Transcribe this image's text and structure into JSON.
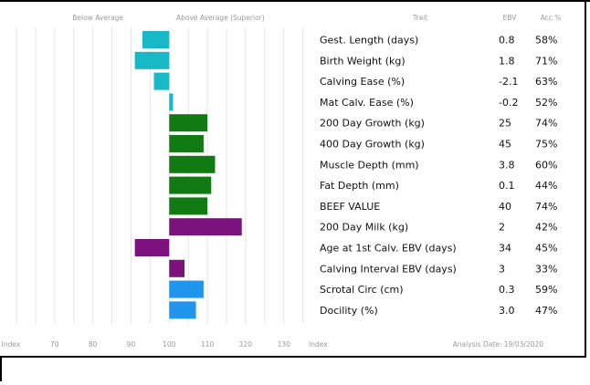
{
  "chart_data": {
    "type": "bar",
    "orientation": "horizontal",
    "header_left": "Below Average",
    "header_right": "Above Average (Superior)",
    "col_trait": "Trait",
    "col_ebv": "EBV",
    "col_acc": "Acc %",
    "x_ticks": [
      {
        "value": 60,
        "label": "Index"
      },
      {
        "value": 70,
        "label": "70"
      },
      {
        "value": 80,
        "label": "80"
      },
      {
        "value": 90,
        "label": "90"
      },
      {
        "value": 100,
        "label": "100"
      },
      {
        "value": 110,
        "label": "110"
      },
      {
        "value": 120,
        "label": "120"
      },
      {
        "value": 130,
        "label": "130"
      }
    ],
    "xlim": [
      60,
      137
    ],
    "baseline": 100,
    "x_end_label": "Index",
    "analysis_date": "Analysis Date: 19/03/2020",
    "grid": true,
    "colors": {
      "teal": "#19b8c7",
      "green": "#117a12",
      "purple": "#7b127e",
      "blue": "#1f95ee"
    },
    "rows": [
      {
        "trait": "Gest. Length (days)",
        "ebv": "0.8",
        "acc": "58%",
        "index": 93,
        "color": "teal"
      },
      {
        "trait": "Birth Weight (kg)",
        "ebv": "1.8",
        "acc": "71%",
        "index": 91,
        "color": "teal"
      },
      {
        "trait": "Calving Ease (%)",
        "ebv": "-2.1",
        "acc": "63%",
        "index": 96,
        "color": "teal"
      },
      {
        "trait": "Mat Calv. Ease (%)",
        "ebv": "-0.2",
        "acc": "52%",
        "index": 101,
        "color": "teal"
      },
      {
        "trait": "200 Day Growth (kg)",
        "ebv": "25",
        "acc": "74%",
        "index": 110,
        "color": "green"
      },
      {
        "trait": "400 Day Growth (kg)",
        "ebv": "45",
        "acc": "75%",
        "index": 109,
        "color": "green"
      },
      {
        "trait": "Muscle Depth (mm)",
        "ebv": "3.8",
        "acc": "60%",
        "index": 112,
        "color": "green"
      },
      {
        "trait": "Fat Depth (mm)",
        "ebv": "0.1",
        "acc": "44%",
        "index": 111,
        "color": "green"
      },
      {
        "trait": "BEEF VALUE",
        "ebv": "40",
        "acc": "74%",
        "index": 110,
        "color": "green"
      },
      {
        "trait": "200 Day Milk (kg)",
        "ebv": "2",
        "acc": "42%",
        "index": 119,
        "color": "purple"
      },
      {
        "trait": "Age at 1st Calv. EBV (days)",
        "ebv": "34",
        "acc": "45%",
        "index": 91,
        "color": "purple"
      },
      {
        "trait": "Calving Interval EBV (days)",
        "ebv": "3",
        "acc": "33%",
        "index": 104,
        "color": "purple"
      },
      {
        "trait": "Scrotal Circ (cm)",
        "ebv": "0.3",
        "acc": "59%",
        "index": 109,
        "color": "blue"
      },
      {
        "trait": "Docility (%)",
        "ebv": "3.0",
        "acc": "47%",
        "index": 107,
        "color": "blue"
      }
    ]
  }
}
